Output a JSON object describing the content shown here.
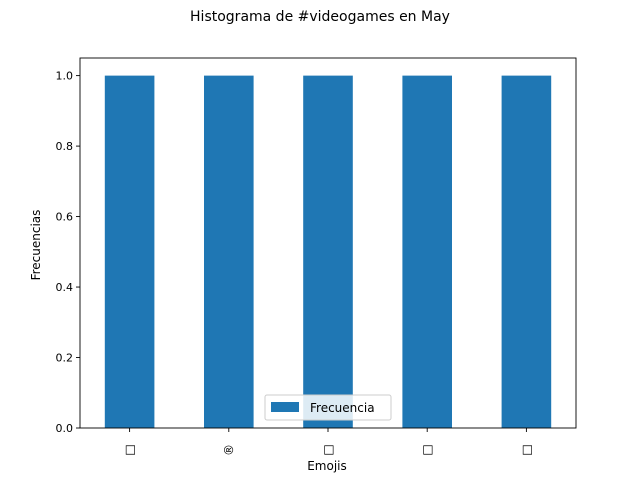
{
  "chart_data": {
    "type": "bar",
    "title": "Histograma de #videogames en May",
    "xlabel": "Emojis",
    "ylabel": "Frecuencias",
    "categories": [
      "□",
      "®",
      "□",
      "□",
      "□"
    ],
    "series": [
      {
        "name": "Frecuencia",
        "values": [
          1.0,
          1.0,
          1.0,
          1.0,
          1.0
        ],
        "color": "#1f77b4"
      }
    ],
    "ylim": [
      0,
      1.05
    ],
    "yticks": [
      "0.0",
      "0.2",
      "0.4",
      "0.6",
      "0.8",
      "1.0"
    ],
    "grid": false,
    "legend_position": "bottom-center"
  }
}
